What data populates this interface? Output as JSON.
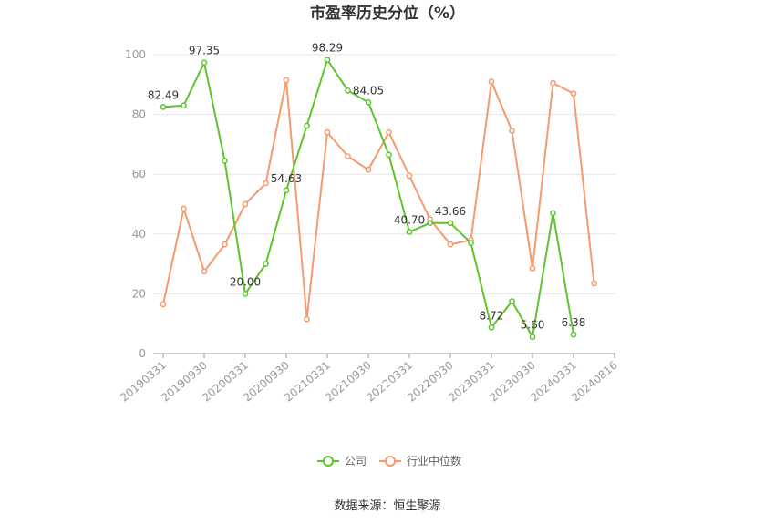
{
  "chart_data": {
    "type": "line",
    "title": "市盈率历史分位（%）",
    "source": "数据来源：恒生聚源",
    "ylim": [
      0,
      100
    ],
    "yticks": [
      0,
      20,
      40,
      60,
      80,
      100
    ],
    "categories": [
      "20190331",
      "20190630",
      "20190930",
      "20191231",
      "20200331",
      "20200630",
      "20200930",
      "20201231",
      "20210331",
      "20210630",
      "20210930",
      "20211231",
      "20220331",
      "20220630",
      "20220930",
      "20221231",
      "20230331",
      "20230630",
      "20230930",
      "20231231",
      "20240331",
      "20240630",
      "20240816"
    ],
    "xtick_labels": [
      "20190331",
      "20190930",
      "20200331",
      "20200930",
      "20210331",
      "20210930",
      "20220331",
      "20220930",
      "20230331",
      "20230930",
      "20240331",
      "20240816"
    ],
    "series": [
      {
        "name": "公司",
        "color": "#5ec42d",
        "values": [
          82.49,
          83.0,
          97.35,
          64.5,
          20.0,
          30.0,
          54.63,
          76.2,
          98.29,
          88.0,
          84.05,
          66.5,
          40.7,
          43.66,
          43.66,
          37.0,
          8.72,
          17.5,
          5.6,
          47.0,
          6.38,
          null,
          null
        ],
        "labels": {
          "0": "82.49",
          "2": "97.35",
          "4": "20.00",
          "6": "54.63",
          "8": "98.29",
          "10": "84.05",
          "12": "40.70",
          "14": "43.66",
          "16": "8.72",
          "18": "5.60",
          "20": "6.38"
        }
      },
      {
        "name": "行业中位数",
        "color": "#f59a6d",
        "values": [
          16.5,
          48.5,
          27.5,
          36.5,
          50.0,
          57.0,
          91.5,
          11.5,
          74.0,
          66.0,
          61.5,
          74.0,
          59.5,
          45.0,
          36.5,
          38.0,
          91.0,
          74.5,
          28.5,
          90.5,
          87.0,
          23.5,
          null
        ]
      }
    ]
  }
}
